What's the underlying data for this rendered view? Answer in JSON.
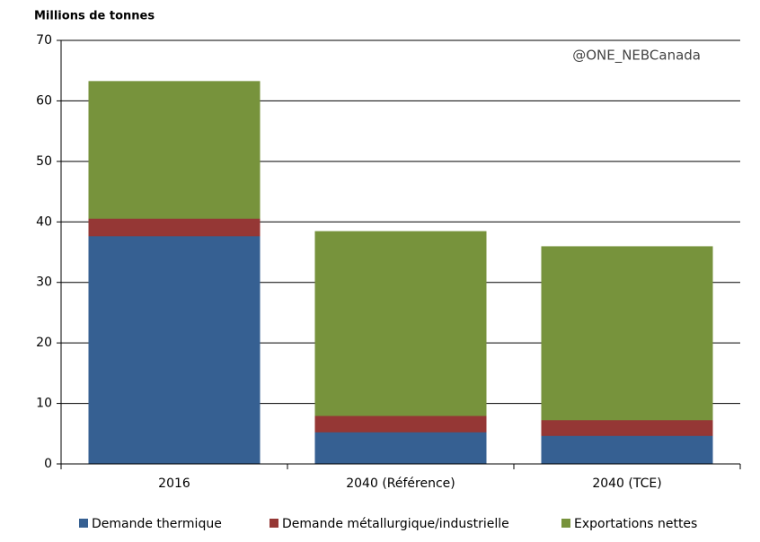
{
  "chart_data": {
    "type": "stacked_bar",
    "y_axis_label": "Millions de tonnes",
    "annotation": "@ONE_NEBCanada",
    "categories": [
      "2016",
      "2040 (Référence)",
      "2040 (TCE)"
    ],
    "series": [
      {
        "name": "Demande thermique",
        "color": "#366092",
        "values": [
          37.7,
          5.3,
          4.7
        ]
      },
      {
        "name": "Demande métallurgique/industrielle",
        "color": "#953735",
        "values": [
          2.9,
          2.7,
          2.6
        ]
      },
      {
        "name": "Exportations nettes",
        "color": "#77933c",
        "values": [
          22.6,
          30.4,
          28.6
        ]
      }
    ],
    "ylim": [
      0,
      70
    ],
    "yticks": [
      0,
      10,
      20,
      30,
      40,
      50,
      60,
      70
    ],
    "grid": true,
    "legend": "bottom"
  }
}
